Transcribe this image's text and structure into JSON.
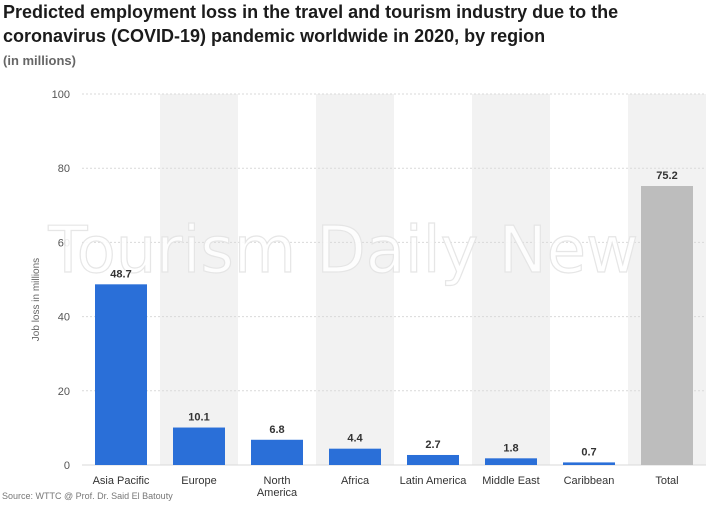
{
  "title": "Predicted employment loss in the travel and tourism industry due to the coronavirus (COVID-19) pandemic worldwide in 2020, by region",
  "subtitle": "(in millions)",
  "watermark": "Tourism Daily News",
  "source": "Source: WTTC @ Prof. Dr. Said El Batouty",
  "colors": {
    "bar": "#2a6fd8",
    "total_bar": "#bdbdbd",
    "band": "#f2f2f2",
    "grid": "#d9d9d9"
  },
  "chart_data": {
    "type": "bar",
    "title": "Predicted employment loss in the travel and tourism industry due to the coronavirus (COVID-19) pandemic worldwide in 2020, by region",
    "ylabel": "Job loss in millions",
    "xlabel": "",
    "ylim": [
      0,
      100
    ],
    "yticks": [
      0,
      20,
      40,
      60,
      80,
      100
    ],
    "grid": true,
    "categories": [
      "Asia Pacific",
      "Europe",
      "North America",
      "Africa",
      "Latin America",
      "Middle East",
      "Caribbean",
      "Total"
    ],
    "values": [
      48.7,
      10.1,
      6.8,
      4.4,
      2.7,
      1.8,
      0.7,
      75.2
    ],
    "value_labels": [
      "48.7",
      "10.1",
      "6.8",
      "4.4",
      "2.7",
      "1.8",
      "0.7",
      "75.2"
    ]
  }
}
